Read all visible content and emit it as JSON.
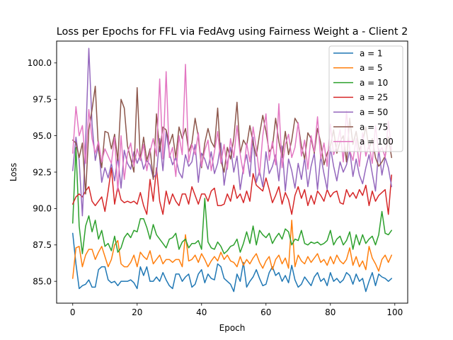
{
  "chart_data": {
    "type": "line",
    "title": "Loss per Epochs for FFL via FedAvg using Fairness Weight a - Client 2",
    "xlabel": "Epoch",
    "ylabel": "Loss",
    "xlim": [
      -5,
      104
    ],
    "ylim": [
      83.5,
      101.5
    ],
    "xticks": [
      0,
      20,
      40,
      60,
      80,
      100
    ],
    "yticks": [
      85.0,
      87.5,
      90.0,
      92.5,
      95.0,
      97.5,
      100.0
    ],
    "xtick_labels": [
      "0",
      "20",
      "40",
      "60",
      "80",
      "100"
    ],
    "ytick_labels": [
      "85.0",
      "87.5",
      "90.0",
      "92.5",
      "95.0",
      "97.5",
      "100.0"
    ],
    "grid": false,
    "legend_position": "top-right",
    "series": [
      {
        "name": "a = 1",
        "color": "#1f77b4",
        "values": [
          88.3,
          86.2,
          84.5,
          84.7,
          84.8,
          85.1,
          84.6,
          84.6,
          85.8,
          86.0,
          86.0,
          85.1,
          84.9,
          85.0,
          84.7,
          85.0,
          85.0,
          85.0,
          85.1,
          84.9,
          84.5,
          86.0,
          85.4,
          86.0,
          85.0,
          85.0,
          85.3,
          85.0,
          85.6,
          85.1,
          84.7,
          84.5,
          85.5,
          85.5,
          85.0,
          85.3,
          85.5,
          84.6,
          84.8,
          85.5,
          85.8,
          84.9,
          85.5,
          85.2,
          85.1,
          86.2,
          86.0,
          85.2,
          85.0,
          84.8,
          84.3,
          85.5,
          85.0,
          86.3,
          84.6,
          85.0,
          85.3,
          85.8,
          85.2,
          84.7,
          84.8,
          85.6,
          86.0,
          85.4,
          85.6,
          85.0,
          85.4,
          84.9,
          86.1,
          85.1,
          84.6,
          84.8,
          85.3,
          85.0,
          84.7,
          85.3,
          85.6,
          85.0,
          85.2,
          84.7,
          85.6,
          85.0,
          85.2,
          84.9,
          85.1,
          85.6,
          85.4,
          84.8,
          85.5,
          85.0,
          85.2,
          84.3,
          85.0,
          85.6,
          84.7,
          85.5,
          85.3,
          85.2,
          85.0,
          85.2
        ]
      },
      {
        "name": "a = 5",
        "color": "#ff7f0e",
        "values": [
          85.2,
          87.3,
          87.4,
          86.0,
          86.8,
          87.2,
          87.2,
          86.5,
          87.0,
          87.4,
          86.7,
          86.0,
          86.5,
          87.5,
          87.8,
          86.2,
          86.0,
          86.0,
          86.3,
          86.8,
          86.0,
          87.0,
          86.7,
          86.5,
          87.1,
          86.2,
          86.5,
          86.8,
          86.2,
          86.5,
          86.5,
          86.3,
          86.5,
          86.5,
          86.0,
          88.2,
          86.4,
          86.5,
          86.8,
          86.3,
          86.9,
          86.5,
          86.0,
          86.4,
          86.7,
          86.4,
          87.0,
          86.5,
          86.8,
          86.4,
          86.3,
          86.0,
          86.7,
          86.1,
          86.5,
          86.2,
          86.6,
          86.9,
          86.3,
          85.9,
          86.4,
          86.7,
          85.8,
          86.5,
          86.8,
          86.2,
          86.6,
          85.9,
          89.2,
          86.0,
          86.8,
          86.4,
          86.2,
          86.7,
          86.3,
          86.6,
          86.9,
          86.3,
          86.5,
          86.1,
          86.7,
          86.2,
          86.8,
          86.4,
          86.2,
          86.5,
          87.3,
          86.1,
          86.7,
          86.0,
          86.4,
          85.8,
          87.4,
          86.6,
          86.2,
          85.7,
          86.5,
          86.8,
          86.3,
          86.8
        ]
      },
      {
        "name": "a = 10",
        "color": "#2ca02c",
        "values": [
          89.0,
          94.2,
          88.8,
          86.9,
          88.8,
          89.5,
          88.4,
          89.2,
          87.9,
          88.5,
          87.4,
          87.6,
          87.1,
          88.1,
          87.0,
          87.3,
          88.0,
          88.3,
          88.0,
          88.5,
          88.4,
          89.3,
          89.3,
          88.7,
          87.9,
          88.9,
          88.2,
          87.9,
          87.6,
          87.3,
          87.9,
          88.0,
          88.3,
          87.2,
          87.7,
          87.9,
          87.3,
          87.6,
          87.6,
          87.8,
          87.2,
          90.7,
          87.7,
          87.3,
          87.2,
          87.7,
          87.4,
          86.9,
          87.1,
          87.4,
          87.5,
          87.9,
          87.0,
          87.6,
          88.4,
          87.6,
          88.8,
          87.5,
          88.5,
          88.2,
          88.0,
          88.3,
          87.6,
          88.0,
          88.3,
          87.9,
          88.6,
          88.4,
          87.5,
          87.9,
          87.8,
          88.5,
          87.6,
          87.5,
          87.7,
          87.6,
          87.7,
          87.5,
          87.6,
          87.8,
          88.5,
          87.5,
          87.9,
          88.1,
          87.5,
          87.8,
          88.4,
          87.2,
          88.2,
          87.5,
          88.2,
          87.6,
          87.9,
          88.1,
          87.5,
          88.2,
          89.8,
          88.3,
          88.2,
          88.5
        ]
      },
      {
        "name": "a = 25",
        "color": "#d62728",
        "values": [
          90.3,
          90.8,
          91.0,
          90.8,
          91.2,
          91.5,
          90.5,
          90.2,
          90.5,
          90.8,
          89.8,
          91.2,
          92.8,
          90.3,
          91.5,
          90.6,
          90.4,
          90.5,
          90.4,
          90.5,
          90.3,
          91.1,
          90.2,
          89.6,
          92.0,
          90.5,
          92.8,
          90.5,
          89.6,
          91.2,
          90.3,
          91.0,
          90.5,
          90.2,
          91.0,
          91.0,
          90.3,
          91.5,
          90.9,
          90.3,
          91.0,
          91.0,
          90.5,
          91.2,
          91.4,
          90.2,
          90.2,
          90.3,
          91.0,
          90.5,
          91.6,
          90.7,
          91.0,
          90.4,
          91.2,
          90.5,
          92.4,
          91.6,
          91.4,
          91.2,
          92.1,
          91.3,
          90.4,
          90.9,
          91.5,
          90.3,
          91.1,
          90.6,
          89.6,
          90.9,
          91.5,
          90.7,
          91.3,
          90.2,
          90.9,
          90.3,
          91.2,
          90.9,
          90.5,
          91.3,
          90.8,
          91.1,
          91.2,
          90.4,
          90.3,
          91.3,
          90.8,
          91.1,
          90.7,
          91.3,
          90.9,
          91.6,
          90.2,
          91.2,
          90.5,
          90.9,
          91.1,
          91.3,
          89.6,
          92.3
        ]
      },
      {
        "name": "a = 50",
        "color": "#9467bd",
        "values": [
          92.6,
          94.9,
          93.3,
          89.5,
          94.6,
          101.0,
          95.8,
          93.3,
          94.4,
          91.8,
          92.8,
          92.1,
          93.1,
          91.9,
          93.6,
          91.4,
          94.0,
          93.1,
          92.7,
          93.9,
          93.1,
          93.7,
          92.7,
          93.3,
          93.0,
          92.1,
          92.4,
          94.8,
          92.6,
          95.3,
          93.8,
          93.0,
          93.5,
          92.5,
          92.1,
          93.7,
          92.9,
          93.2,
          94.4,
          91.8,
          93.8,
          93.4,
          92.7,
          93.9,
          92.4,
          93.1,
          94.5,
          91.6,
          93.1,
          94.2,
          92.5,
          93.6,
          91.3,
          92.8,
          93.7,
          92.2,
          94.9,
          91.8,
          92.6,
          91.5,
          93.9,
          92.4,
          92.9,
          93.7,
          91.9,
          94.3,
          91.2,
          93.4,
          92.6,
          91.4,
          93.1,
          92.0,
          93.5,
          91.5,
          92.9,
          93.8,
          91.3,
          93.6,
          92.4,
          91.3,
          94.2,
          92.9,
          91.9,
          93.2,
          92.5,
          93.0,
          94.0,
          92.2,
          93.4,
          92.3,
          91.7,
          92.8,
          93.7,
          92.4,
          91.2,
          94.1,
          92.3,
          93.5,
          92.8,
          91.5
        ]
      },
      {
        "name": "a = 75",
        "color": "#8c564b",
        "values": [
          94.7,
          94.5,
          93.5,
          94.5,
          91.0,
          95.4,
          96.8,
          98.4,
          94.0,
          92.8,
          95.3,
          95.2,
          94.1,
          95.1,
          93.3,
          97.5,
          96.9,
          94.3,
          93.4,
          92.5,
          98.3,
          93.3,
          94.9,
          93.3,
          94.1,
          92.0,
          96.5,
          93.9,
          95.6,
          95.4,
          94.4,
          95.1,
          93.5,
          95.6,
          94.8,
          95.5,
          93.9,
          94.5,
          96.2,
          94.9,
          92.8,
          94.5,
          95.5,
          94.6,
          94.2,
          96.9,
          93.3,
          92.5,
          94.2,
          93.4,
          94.8,
          97.3,
          93.8,
          94.7,
          94.3,
          95.7,
          94.5,
          93.6,
          95.1,
          96.4,
          95.3,
          93.9,
          94.2,
          96.2,
          94.6,
          93.5,
          95.3,
          93.7,
          94.7,
          96.2,
          95.8,
          94.3,
          93.4,
          95.2,
          94.8,
          93.8,
          95.5,
          94.5,
          93.0,
          93.8,
          94.3,
          95.4,
          93.8,
          94.6,
          95.0,
          93.2,
          96.2,
          94.4,
          95.3,
          94.0,
          94.6,
          95.6,
          94.1,
          94.8,
          93.5,
          92.9,
          93.2,
          93.6,
          94.9,
          93.5
        ]
      },
      {
        "name": "a = 100",
        "color": "#e377c2",
        "values": [
          93.8,
          97.0,
          95.0,
          95.7,
          93.1,
          96.8,
          94.8,
          93.8,
          94.6,
          93.2,
          94.1,
          93.6,
          93.1,
          94.9,
          91.2,
          95.0,
          92.0,
          93.8,
          94.5,
          92.9,
          94.1,
          93.3,
          94.4,
          92.6,
          93.9,
          94.8,
          93.6,
          98.9,
          93.4,
          99.4,
          93.5,
          94.2,
          92.2,
          95.0,
          93.7,
          99.9,
          93.2,
          94.4,
          93.7,
          95.2,
          92.9,
          94.0,
          94.7,
          92.6,
          93.9,
          95.3,
          93.1,
          94.4,
          92.7,
          94.8,
          93.5,
          95.7,
          93.7,
          92.4,
          94.5,
          93.2,
          95.6,
          94.1,
          92.3,
          95.0,
          96.5,
          93.3,
          94.6,
          93.0,
          97.2,
          92.8,
          94.4,
          95.1,
          93.5,
          94.2,
          95.9,
          93.6,
          94.7,
          92.7,
          95.0,
          93.9,
          96.3,
          93.4,
          94.5,
          92.9,
          95.8,
          93.7,
          94.3,
          95.4,
          93.2,
          96.7,
          94.0,
          93.3,
          94.8,
          92.9,
          95.2,
          93.6,
          94.4,
          93.1,
          95.7,
          93.8,
          94.2,
          93.5,
          96.0,
          94.0
        ]
      }
    ]
  }
}
